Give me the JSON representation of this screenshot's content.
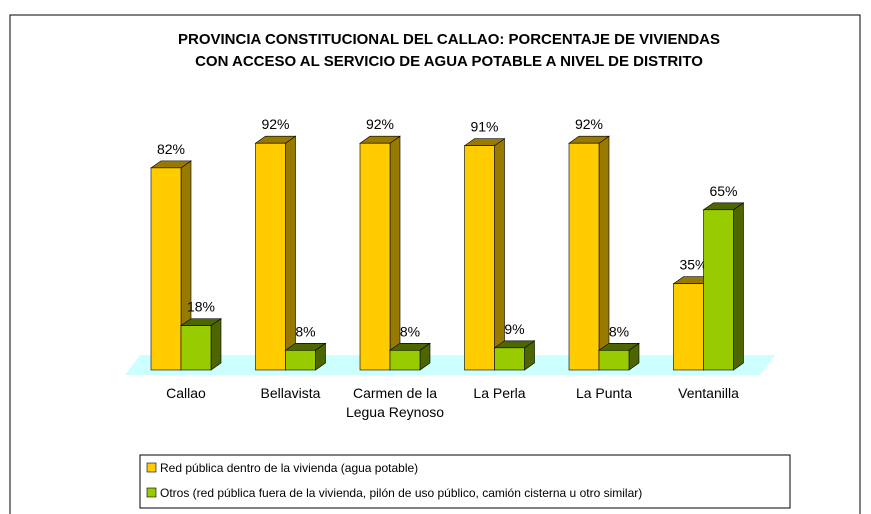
{
  "chart_data": {
    "type": "bar3d",
    "title": [
      "PROVINCIA CONSTITUCIONAL DEL CALLAO: PORCENTAJE DE VIVIENDAS",
      "CON ACCESO AL SERVICIO DE AGUA POTABLE A NIVEL DE DISTRITO"
    ],
    "categories": [
      "Callao",
      "Bellavista",
      "Carmen de la Legua Reynoso",
      "La Perla",
      "La Punta",
      "Ventanilla"
    ],
    "series": [
      {
        "name": "Red pública dentro de la vivienda (agua potable)",
        "color": "#FFCC00",
        "side": "#997A00",
        "values": [
          82,
          92,
          92,
          91,
          92,
          35
        ],
        "value_labels": [
          "82%",
          "92%",
          "92%",
          "91%",
          "92%",
          "35%"
        ]
      },
      {
        "name": "Otros (red pública fuera de la vivienda, pilón de uso público, camión cisterna u otro similar)",
        "color": "#99CC00",
        "side": "#4D6600",
        "values": [
          18,
          8,
          8,
          9,
          8,
          65
        ],
        "value_labels": [
          "18%",
          "8%",
          "8%",
          "9%",
          "8%",
          "65%"
        ]
      }
    ],
    "floor_color": "#CCFFFF",
    "legend": "bottom"
  }
}
